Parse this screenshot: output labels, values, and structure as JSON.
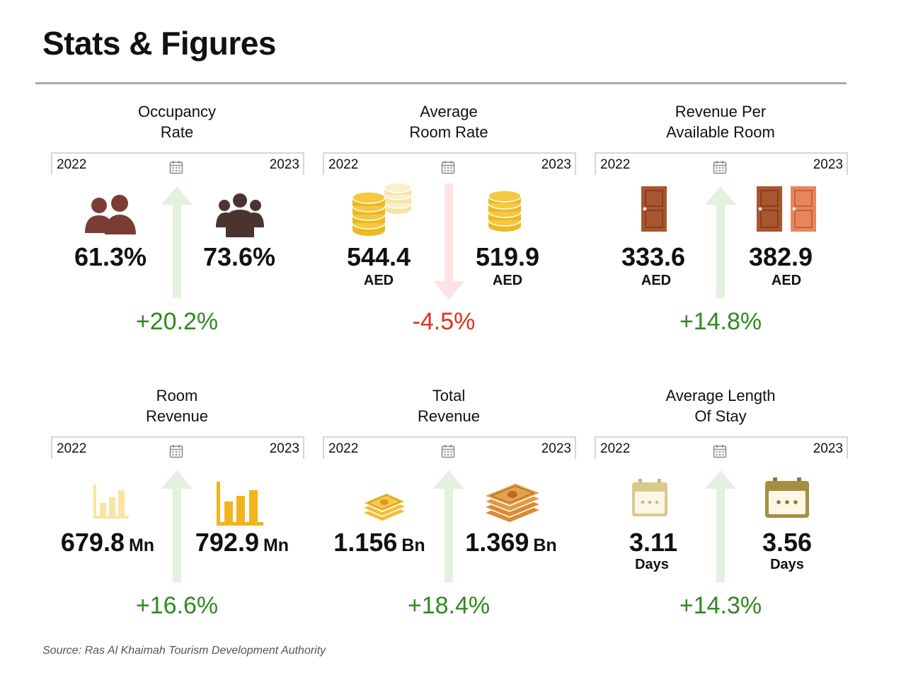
{
  "page": {
    "title": "Stats & Figures",
    "source": "Source: Ras Al Khaimah Tourism Development Authority"
  },
  "colors": {
    "up_arrow": "#e3f1df",
    "down_arrow": "#fde3e3",
    "positive": "#2e8b1e",
    "negative": "#e0301e"
  },
  "stats": [
    {
      "title_line1": "Occupancy",
      "title_line2": "Rate",
      "year_left": "2022",
      "year_right": "2023",
      "value_2022": "61.3%",
      "value_2023": "73.6%",
      "unit": "",
      "change": "+20.2%",
      "direction": "up",
      "icons": [
        "two-people-icon",
        "group-people-icon"
      ]
    },
    {
      "title_line1": "Average",
      "title_line2": "Room Rate",
      "year_left": "2022",
      "year_right": "2023",
      "value_2022": "544.4",
      "value_2023": "519.9",
      "unit": "AED",
      "change": "-4.5%",
      "direction": "down",
      "icons": [
        "coin-stacks-icon",
        "coin-stack-icon"
      ]
    },
    {
      "title_line1": "Revenue Per",
      "title_line2": "Available Room",
      "year_left": "2022",
      "year_right": "2023",
      "value_2022": "333.6",
      "value_2023": "382.9",
      "unit": "AED",
      "change": "+14.8%",
      "direction": "up",
      "icons": [
        "door-icon",
        "double-door-icon"
      ]
    },
    {
      "title_line1": "Room",
      "title_line2": "Revenue",
      "year_left": "2022",
      "year_right": "2023",
      "value_2022": "679.8",
      "value_2023": "792.9",
      "unit": "Mn",
      "change": "+16.6%",
      "direction": "up",
      "icons": [
        "bar-chart-icon",
        "bar-chart-icon"
      ]
    },
    {
      "title_line1": "Total",
      "title_line2": "Revenue",
      "year_left": "2022",
      "year_right": "2023",
      "value_2022": "1.156",
      "value_2023": "1.369",
      "unit": "Bn",
      "change": "+18.4%",
      "direction": "up",
      "icons": [
        "cash-stack-icon",
        "cash-stack-icon"
      ]
    },
    {
      "title_line1": "Average Length",
      "title_line2": "Of Stay",
      "year_left": "2022",
      "year_right": "2023",
      "value_2022": "3.11",
      "value_2023": "3.56",
      "unit": "Days",
      "change": "+14.3%",
      "direction": "up",
      "icons": [
        "calendar-icon",
        "calendar-icon"
      ]
    }
  ]
}
